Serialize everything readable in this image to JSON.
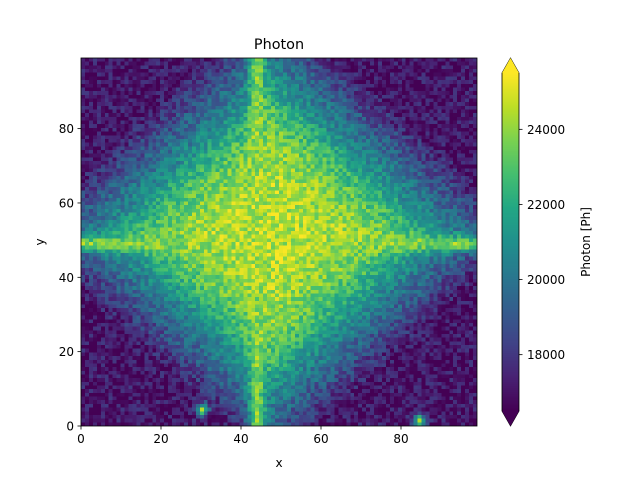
{
  "chart_data": {
    "type": "heatmap",
    "title": "Photon",
    "xlabel": "x",
    "ylabel": "y",
    "colorbar_label": "Photon [Ph]",
    "colormap": "viridis",
    "colorbar_extend": "both",
    "grid_shape": [
      100,
      100
    ],
    "xlim": [
      0,
      99
    ],
    "ylim": [
      0,
      99
    ],
    "clim": [
      16500,
      25500
    ],
    "x_ticks": [
      0,
      20,
      40,
      60,
      80
    ],
    "y_ticks": [
      0,
      20,
      40,
      60,
      80
    ],
    "colorbar_ticks": [
      18000,
      20000,
      22000,
      24000
    ],
    "x_tick_labels": [
      "0",
      "20",
      "40",
      "60",
      "80"
    ],
    "y_tick_labels": [
      "0",
      "20",
      "40",
      "60",
      "80"
    ],
    "colorbar_tick_labels": [
      "18000",
      "20000",
      "22000",
      "24000"
    ],
    "features": {
      "central_diamond": {
        "center_x": 48,
        "center_y": 52,
        "peak_value": 24500,
        "edge_value": 21000
      },
      "vertical_streak": {
        "x": 44,
        "value": 24000
      },
      "horizontal_streak": {
        "y": 49,
        "value": 24000
      },
      "corner_value": 17000,
      "hot_spots": [
        {
          "x": 30,
          "y": 4,
          "value": 23500
        },
        {
          "x": 85,
          "y": 1,
          "value": 23500
        }
      ]
    }
  }
}
